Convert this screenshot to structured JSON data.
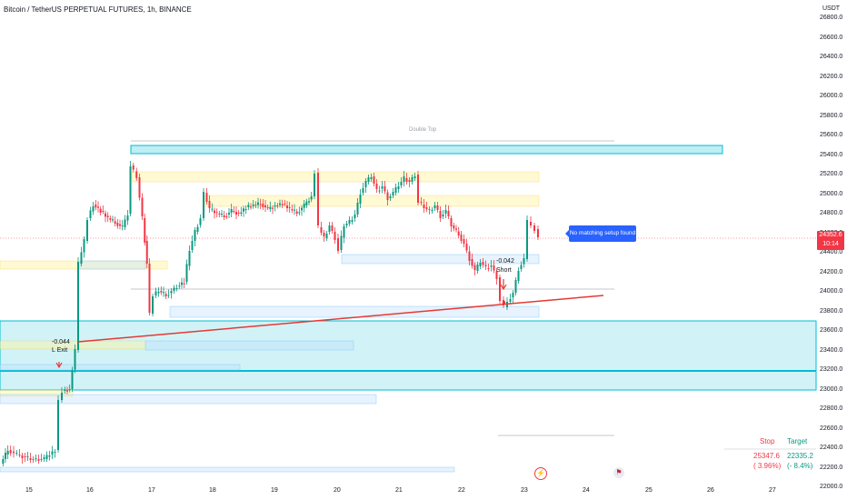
{
  "header": {
    "symbol_title": "Bitcoin / TetherUS PERPETUAL FUTURES, 1h, BINANCE",
    "currency": "USDT"
  },
  "y_axis": {
    "ticks": [
      "26800.0",
      "26600.0",
      "26400.0",
      "26200.0",
      "26000.0",
      "25800.0",
      "25600.0",
      "25400.0",
      "25200.0",
      "25000.0",
      "24800.0",
      "24600.0",
      "24400.0",
      "24200.0",
      "24000.0",
      "23800.0",
      "23600.0",
      "23400.0",
      "23200.0",
      "23000.0",
      "22800.0",
      "22600.0",
      "22400.0",
      "22200.0",
      "22000.0"
    ]
  },
  "x_axis": {
    "ticks": [
      "15",
      "16",
      "17",
      "18",
      "19",
      "20",
      "21",
      "22",
      "23",
      "24",
      "25",
      "26",
      "27"
    ]
  },
  "price_badge": {
    "price": "24352.6",
    "countdown": "10:14"
  },
  "info_box": {
    "text": "No matching setup found"
  },
  "annotations": {
    "double_top": "Double Top",
    "short_value": "-0.042",
    "short_label": "Short",
    "exit_value": "-0.044",
    "exit_label": "L Exit"
  },
  "stats": {
    "stop_header": "Stop",
    "target_header": "Target",
    "stop_value": "25347.6",
    "stop_pct": "( 3.96%)",
    "target_value": "22335.2",
    "target_pct": "(- 8.4%)"
  },
  "colors": {
    "up": "#089981",
    "down": "#f23645",
    "zone": "#00bcd4",
    "trend": "#e53935",
    "accent": "#2962ff"
  }
}
